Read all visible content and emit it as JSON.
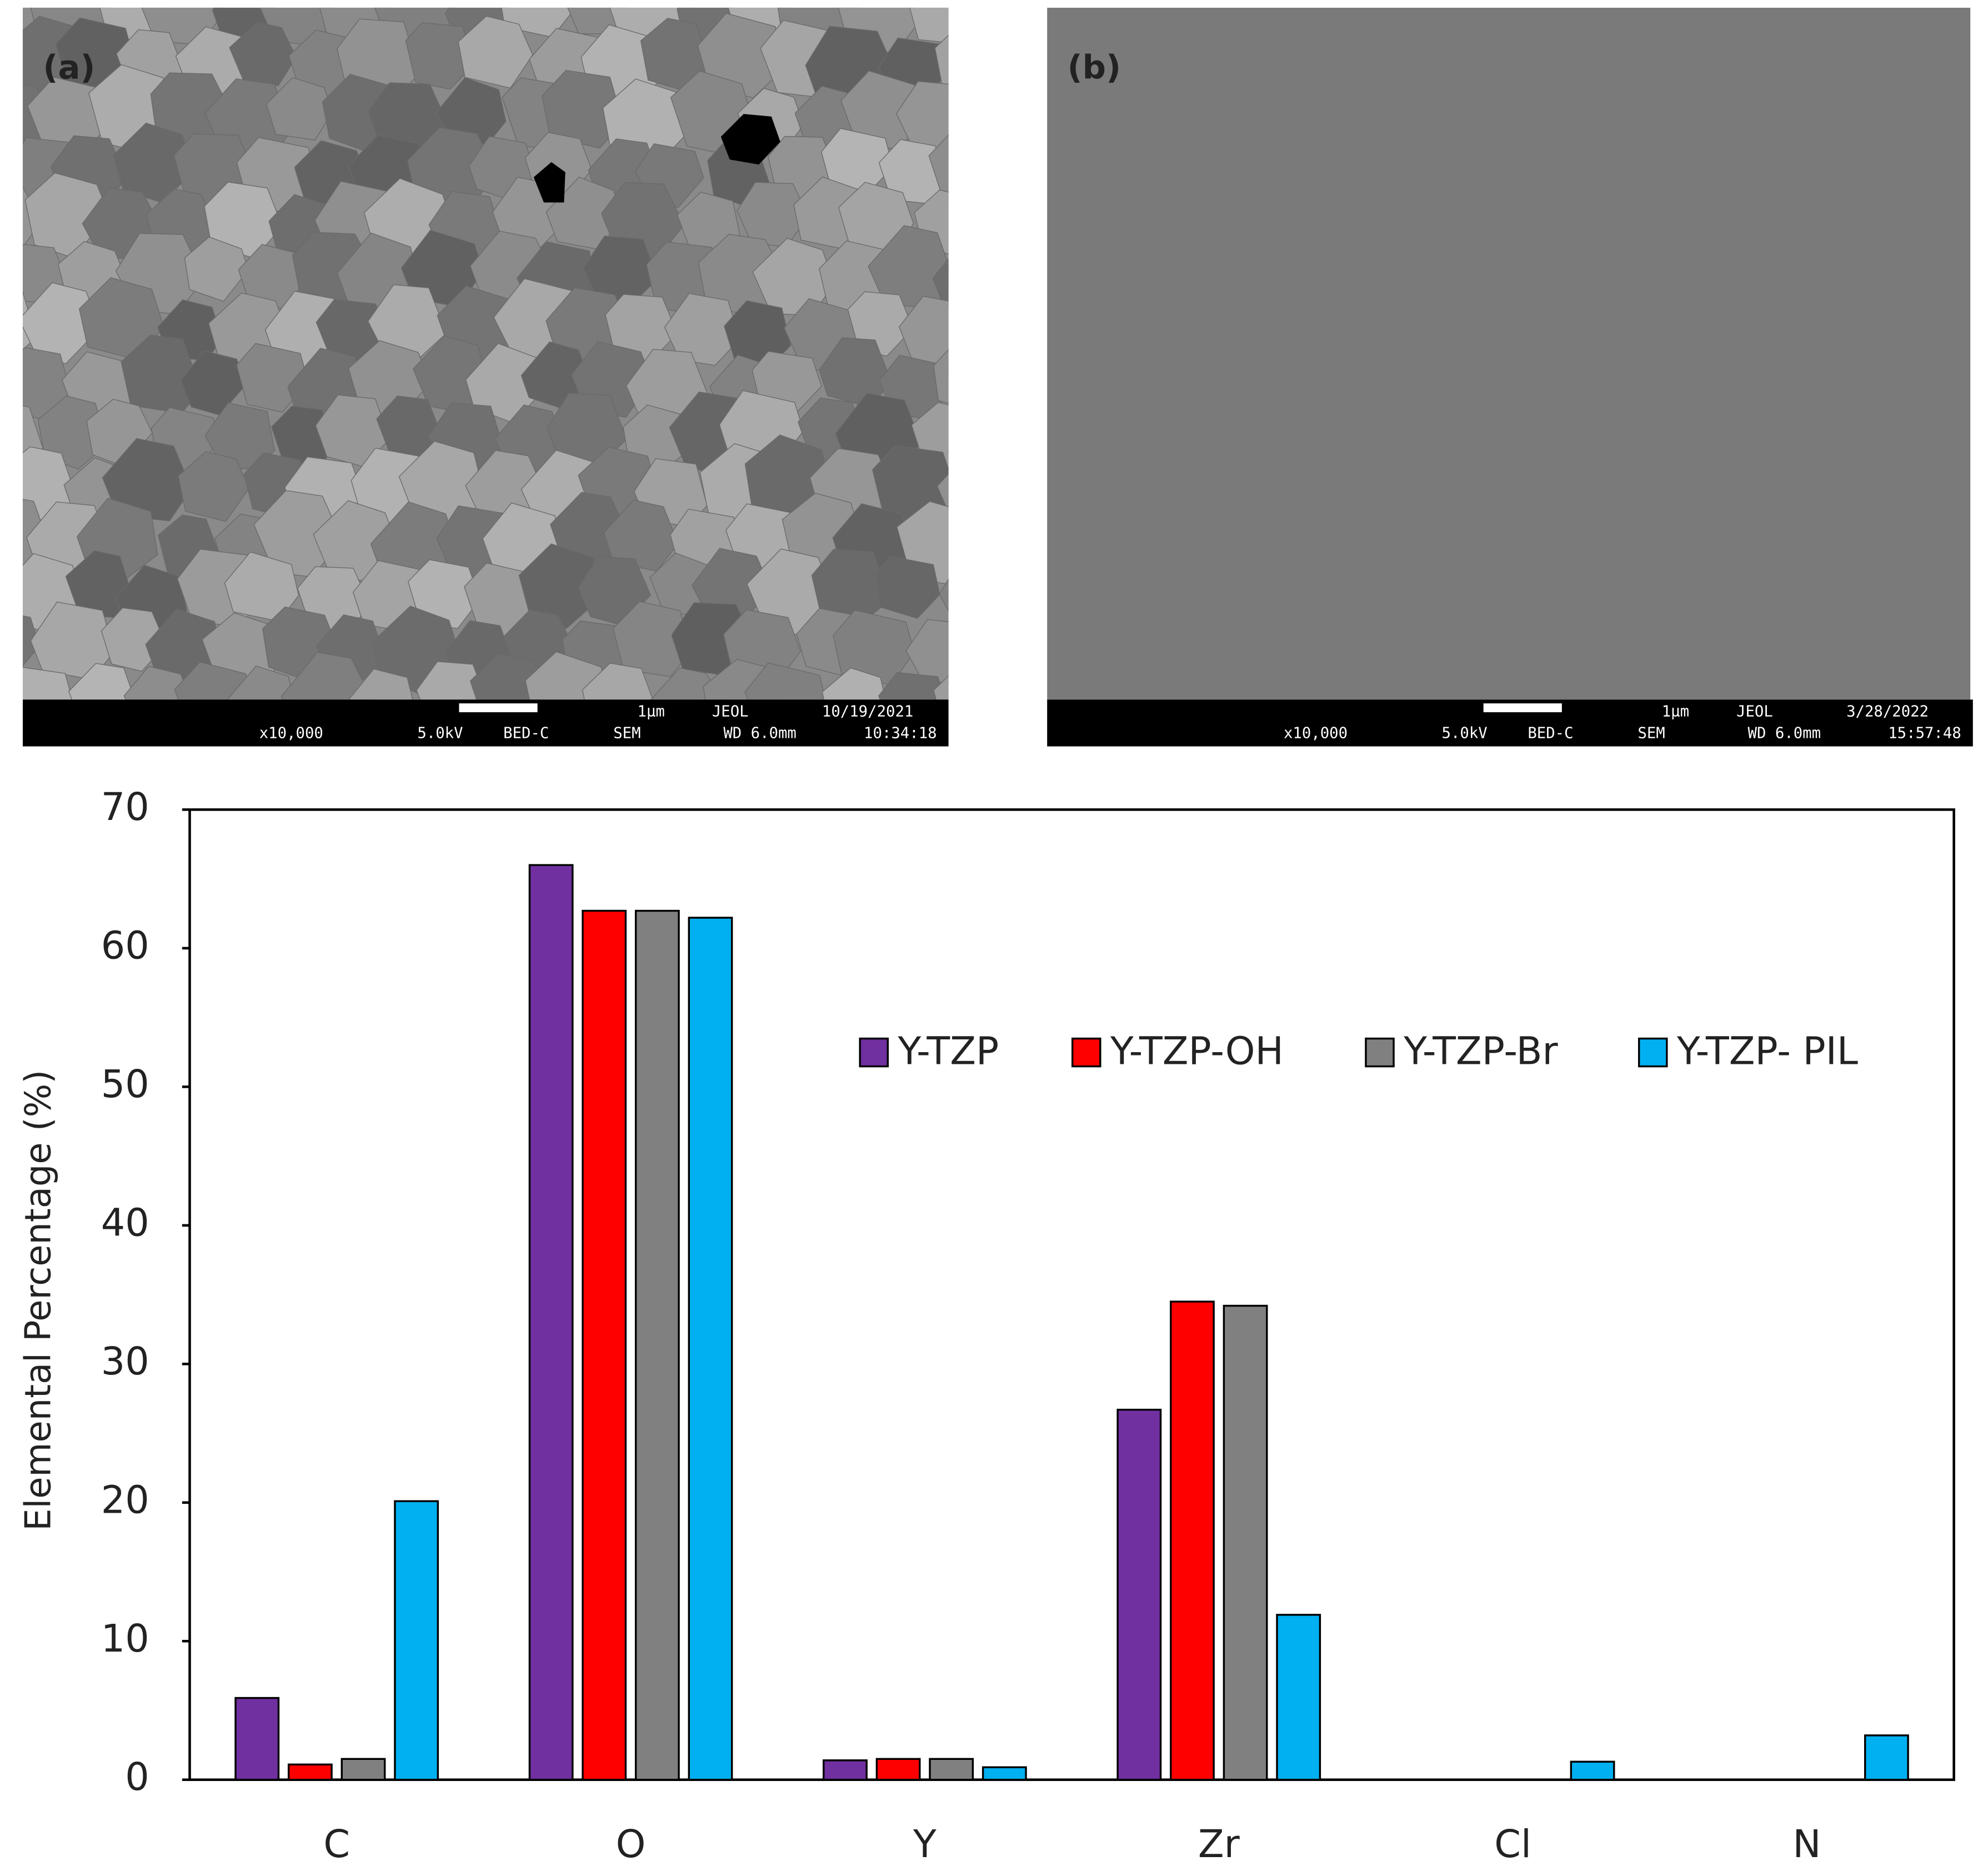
{
  "panels": [
    {
      "label": "(a)",
      "scale": "1μm",
      "maker": "JEOL",
      "date": "10/19/2021",
      "mag": "x10,000",
      "kv": "5.0kV",
      "detector": "BED-C",
      "mode": "SEM",
      "wd": "WD 6.0mm",
      "time": "10:34:18"
    },
    {
      "label": "(b)",
      "scale": "1μm",
      "maker": "JEOL",
      "date": "3/28/2022",
      "mag": "x10,000",
      "kv": "5.0kV",
      "detector": "BED-C",
      "mode": "SEM",
      "wd": "WD 6.0mm",
      "time": "15:57:48"
    }
  ],
  "chart_data": {
    "type": "bar",
    "y_label": "Elemental Percentage (%)",
    "categories": [
      "C",
      "O",
      "Y",
      "Zr",
      "Cl",
      "N"
    ],
    "series": [
      {
        "name": "Y-TZP",
        "color": "#7030a0",
        "values": [
          5.9,
          66,
          1.4,
          26.7,
          0,
          0
        ]
      },
      {
        "name": "Y-TZP-OH",
        "color": "#ff0000",
        "values": [
          1.1,
          62.7,
          1.5,
          34.5,
          0,
          0
        ]
      },
      {
        "name": "Y-TZP-Br",
        "color": "#808080",
        "values": [
          1.5,
          62.7,
          1.5,
          34.2,
          0,
          0
        ]
      },
      {
        "name": "Y-TZP- PIL",
        "color": "#00b0f0",
        "values": [
          20.1,
          62.2,
          0.9,
          11.9,
          1.3,
          3.2
        ]
      }
    ],
    "ylim": [
      0,
      70
    ],
    "yticks": [
      0,
      10,
      20,
      30,
      40,
      50,
      60,
      70
    ],
    "grid": false
  }
}
